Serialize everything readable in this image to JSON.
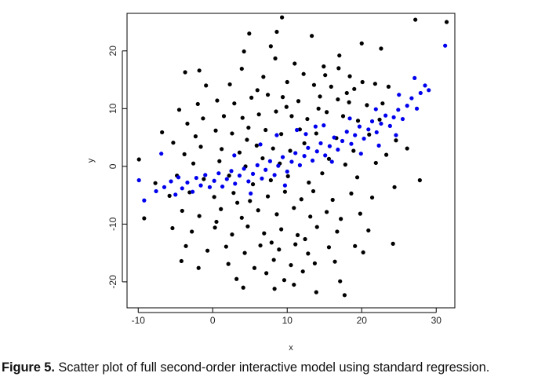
{
  "caption": {
    "label": "Figure 5.",
    "text": " Scatter plot of full second-order interactive model using standard regression."
  },
  "chart_data": {
    "type": "scatter",
    "xlabel": "x",
    "ylabel": "y",
    "xlim": [
      -11.5,
      32.5
    ],
    "ylim": [
      -24.5,
      26.5
    ],
    "xticks": [
      -10,
      0,
      10,
      20,
      30
    ],
    "yticks": [
      -20,
      -10,
      0,
      10,
      20
    ],
    "grid": false,
    "colors": {
      "observed": "#000000",
      "fitted": "#0000ee"
    },
    "series": [
      {
        "values_desc": "observed",
        "color": "#000000",
        "points": [
          [
            9.3,
            25.8
          ],
          [
            27.2,
            25.4
          ],
          [
            31.4,
            25.0
          ],
          [
            4.9,
            23.0
          ],
          [
            8.6,
            23.3
          ],
          [
            13.3,
            22.6
          ],
          [
            20.0,
            21.3
          ],
          [
            7.8,
            20.8
          ],
          [
            4.2,
            19.9
          ],
          [
            17.0,
            19.2
          ],
          [
            8.4,
            18.7
          ],
          [
            22.6,
            20.4
          ],
          [
            -3.7,
            16.3
          ],
          [
            -1.8,
            16.6
          ],
          [
            11.0,
            17.8
          ],
          [
            14.9,
            17.3
          ],
          [
            16.9,
            17.0
          ],
          [
            3.9,
            16.9
          ],
          [
            6.8,
            15.5
          ],
          [
            12.2,
            16.0
          ],
          [
            18.4,
            15.6
          ],
          [
            20.1,
            14.6
          ],
          [
            21.8,
            14.3
          ],
          [
            -0.9,
            14.0
          ],
          [
            2.3,
            14.2
          ],
          [
            10.0,
            14.6
          ],
          [
            13.6,
            14.1
          ],
          [
            15.9,
            13.8
          ],
          [
            19.0,
            13.4
          ],
          [
            23.6,
            13.8
          ],
          [
            -4.5,
            9.8
          ],
          [
            -2.0,
            10.8
          ],
          [
            0.6,
            11.4
          ],
          [
            2.9,
            10.9
          ],
          [
            5.2,
            11.9
          ],
          [
            7.4,
            12.4
          ],
          [
            9.4,
            12.0
          ],
          [
            11.5,
            11.3
          ],
          [
            14.4,
            12.1
          ],
          [
            16.8,
            11.6
          ],
          [
            18.3,
            11.1
          ],
          [
            20.7,
            10.6
          ],
          [
            -6.8,
            5.9
          ],
          [
            -3.4,
            7.4
          ],
          [
            -1.3,
            8.3
          ],
          [
            1.5,
            8.7
          ],
          [
            4.0,
            8.4
          ],
          [
            6.2,
            9.0
          ],
          [
            8.5,
            9.5
          ],
          [
            10.6,
            8.7
          ],
          [
            12.7,
            8.2
          ],
          [
            15.3,
            9.4
          ],
          [
            17.5,
            8.7
          ],
          [
            19.5,
            7.9
          ],
          [
            22.4,
            8.1
          ],
          [
            -5.3,
            4.1
          ],
          [
            -2.3,
            5.2
          ],
          [
            0.4,
            6.2
          ],
          [
            2.6,
            5.7
          ],
          [
            4.8,
            6.7
          ],
          [
            7.1,
            6.3
          ],
          [
            9.2,
            5.6
          ],
          [
            11.7,
            6.4
          ],
          [
            13.9,
            5.7
          ],
          [
            16.6,
            4.9
          ],
          [
            21.0,
            5.5
          ],
          [
            24.6,
            4.5
          ],
          [
            -3.8,
            2.1
          ],
          [
            -1.6,
            3.4
          ],
          [
            1.2,
            3.0
          ],
          [
            3.6,
            2.4
          ],
          [
            5.9,
            3.6
          ],
          [
            8.1,
            3.1
          ],
          [
            10.4,
            2.7
          ],
          [
            12.3,
            4.0
          ],
          [
            18.9,
            2.7
          ],
          [
            23.3,
            2.0
          ],
          [
            26.1,
            3.1
          ],
          [
            -9.9,
            1.2
          ],
          [
            -2.6,
            0.5
          ],
          [
            0.9,
            0.9
          ],
          [
            4.4,
            0.0
          ],
          [
            6.7,
            1.4
          ],
          [
            9.0,
            0.5
          ],
          [
            15.6,
            1.3
          ],
          [
            17.8,
            0.3
          ],
          [
            21.9,
            0.6
          ],
          [
            -7.7,
            -2.9
          ],
          [
            -4.8,
            -1.6
          ],
          [
            -1.2,
            -2.2
          ],
          [
            2.2,
            -1.6
          ],
          [
            5.4,
            -3.1
          ],
          [
            7.8,
            -2.4
          ],
          [
            10.1,
            -1.7
          ],
          [
            12.9,
            -2.8
          ],
          [
            14.7,
            -1.2
          ],
          [
            19.4,
            -1.9
          ],
          [
            24.4,
            -3.6
          ],
          [
            27.8,
            -2.4
          ],
          [
            -5.8,
            -5.1
          ],
          [
            -3.1,
            -4.5
          ],
          [
            0.2,
            -5.3
          ],
          [
            2.8,
            -4.6
          ],
          [
            5.0,
            -6.0
          ],
          [
            7.4,
            -5.2
          ],
          [
            9.7,
            -4.4
          ],
          [
            11.9,
            -5.7
          ],
          [
            13.5,
            -4.3
          ],
          [
            16.1,
            -5.8
          ],
          [
            18.6,
            -4.7
          ],
          [
            21.4,
            -5.4
          ],
          [
            -9.2,
            -9.0
          ],
          [
            -4.1,
            -7.7
          ],
          [
            -1.8,
            -8.6
          ],
          [
            1.1,
            -7.4
          ],
          [
            3.9,
            -8.9
          ],
          [
            6.1,
            -7.6
          ],
          [
            8.6,
            -8.3
          ],
          [
            10.9,
            -7.2
          ],
          [
            13.1,
            -8.7
          ],
          [
            15.3,
            -7.9
          ],
          [
            17.2,
            -9.1
          ],
          [
            19.8,
            -8.2
          ],
          [
            -5.4,
            -10.7
          ],
          [
            -2.8,
            -11.3
          ],
          [
            0.3,
            -10.6
          ],
          [
            2.6,
            -11.8
          ],
          [
            4.7,
            -10.4
          ],
          [
            6.9,
            -11.6
          ],
          [
            9.2,
            -10.9
          ],
          [
            11.4,
            -11.9
          ],
          [
            14.0,
            -10.5
          ],
          [
            16.7,
            -11.3
          ],
          [
            20.9,
            -11.1
          ],
          [
            -3.6,
            -13.8
          ],
          [
            -0.7,
            -14.6
          ],
          [
            1.8,
            -13.9
          ],
          [
            4.3,
            -15.0
          ],
          [
            6.4,
            -13.7
          ],
          [
            8.9,
            -14.4
          ],
          [
            11.1,
            -13.5
          ],
          [
            12.8,
            -15.1
          ],
          [
            15.6,
            -14.0
          ],
          [
            19.1,
            -13.8
          ],
          [
            -4.2,
            -16.4
          ],
          [
            2.1,
            -16.9
          ],
          [
            5.6,
            -17.6
          ],
          [
            8.2,
            -16.2
          ],
          [
            10.5,
            -17.1
          ],
          [
            13.7,
            -16.8
          ],
          [
            16.4,
            -16.5
          ],
          [
            20.2,
            -14.9
          ],
          [
            24.2,
            -13.4
          ],
          [
            -1.9,
            -17.6
          ],
          [
            3.2,
            -19.5
          ],
          [
            7.2,
            -18.5
          ],
          [
            9.6,
            -19.7
          ],
          [
            12.1,
            -18.2
          ],
          [
            17.1,
            -19.9
          ],
          [
            4.1,
            -21.0
          ],
          [
            8.3,
            -21.2
          ],
          [
            10.9,
            -20.5
          ],
          [
            13.9,
            -21.8
          ],
          [
            17.7,
            -22.3
          ],
          [
            0.5,
            -9.6
          ],
          [
            3.3,
            -6.3
          ],
          [
            7.9,
            -13.2
          ],
          [
            12.4,
            -12.6
          ],
          [
            15.1,
            15.8
          ],
          [
            6.0,
            13.2
          ],
          [
            18.0,
            12.7
          ],
          [
            9.9,
            10.3
          ],
          [
            14.2,
            10.0
          ],
          [
            4.6,
            4.6
          ],
          [
            22.8,
            10.9
          ]
        ]
      },
      {
        "values_desc": "fitted",
        "color": "#0000ee",
        "points": [
          [
            -9.9,
            -2.4
          ],
          [
            -9.2,
            -5.9
          ],
          [
            -7.6,
            -4.3
          ],
          [
            -6.5,
            -3.6
          ],
          [
            -5.6,
            -2.6
          ],
          [
            -5.0,
            -4.9
          ],
          [
            -4.6,
            -1.9
          ],
          [
            -4.1,
            -3.8
          ],
          [
            -3.4,
            -2.8
          ],
          [
            -2.7,
            -4.4
          ],
          [
            -2.2,
            -2.0
          ],
          [
            -1.6,
            -3.3
          ],
          [
            -1.0,
            -1.5
          ],
          [
            -0.4,
            -3.6
          ],
          [
            0.2,
            -2.5
          ],
          [
            0.8,
            -1.2
          ],
          [
            1.3,
            -3.5
          ],
          [
            1.9,
            -2.2
          ],
          [
            2.5,
            -0.8
          ],
          [
            3.0,
            -3.0
          ],
          [
            3.6,
            -1.6
          ],
          [
            4.2,
            -0.4
          ],
          [
            4.8,
            -2.6
          ],
          [
            5.4,
            -1.3
          ],
          [
            6.0,
            0.2
          ],
          [
            6.6,
            -2.1
          ],
          [
            7.1,
            -0.6
          ],
          [
            7.7,
            0.9
          ],
          [
            8.3,
            -1.5
          ],
          [
            8.8,
            0.1
          ],
          [
            9.4,
            1.6
          ],
          [
            10.0,
            -0.9
          ],
          [
            10.6,
            0.8
          ],
          [
            11.1,
            2.3
          ],
          [
            11.7,
            0.2
          ],
          [
            12.3,
            1.8
          ],
          [
            12.8,
            3.2
          ],
          [
            13.4,
            1.0
          ],
          [
            14.0,
            2.6
          ],
          [
            14.5,
            4.0
          ],
          [
            15.1,
            1.9
          ],
          [
            15.7,
            3.5
          ],
          [
            16.3,
            5.0
          ],
          [
            16.8,
            2.9
          ],
          [
            17.4,
            4.4
          ],
          [
            18.0,
            6.0
          ],
          [
            18.6,
            3.9
          ],
          [
            19.1,
            5.4
          ],
          [
            19.7,
            6.9
          ],
          [
            20.3,
            4.8
          ],
          [
            20.9,
            6.4
          ],
          [
            21.4,
            7.8
          ],
          [
            22.0,
            5.9
          ],
          [
            22.6,
            7.4
          ],
          [
            23.2,
            8.8
          ],
          [
            23.8,
            7.0
          ],
          [
            24.3,
            8.5
          ],
          [
            24.9,
            9.8
          ],
          [
            25.5,
            8.2
          ],
          [
            26.1,
            10.5
          ],
          [
            26.7,
            11.8
          ],
          [
            27.4,
            10.0
          ],
          [
            27.9,
            12.7
          ],
          [
            28.5,
            14.0
          ],
          [
            29.0,
            13.2
          ],
          [
            31.2,
            20.9
          ],
          [
            25.0,
            12.4
          ],
          [
            27.1,
            15.3
          ],
          [
            6.4,
            3.8
          ],
          [
            8.6,
            5.4
          ],
          [
            11.3,
            6.3
          ],
          [
            13.8,
            6.9
          ],
          [
            -6.9,
            2.2
          ],
          [
            2.9,
            1.9
          ],
          [
            5.1,
            -4.7
          ],
          [
            9.7,
            -3.3
          ],
          [
            16.0,
            0.8
          ],
          [
            19.9,
            2.2
          ],
          [
            22.3,
            3.6
          ],
          [
            24.6,
            5.4
          ],
          [
            21.9,
            9.9
          ],
          [
            18.4,
            8.3
          ],
          [
            14.9,
            7.1
          ],
          [
            12.5,
            5.6
          ]
        ]
      }
    ]
  }
}
